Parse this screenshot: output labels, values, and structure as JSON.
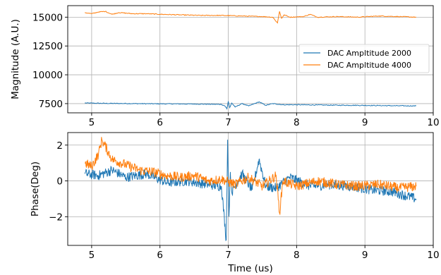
{
  "chart_data": [
    {
      "type": "line",
      "title": "",
      "xlabel": "",
      "ylabel": "Magnitude (A.U.)",
      "xlim": [
        4.65,
        10.0
      ],
      "ylim": [
        6700,
        16000
      ],
      "xticks": [
        5,
        6,
        7,
        8,
        9,
        10
      ],
      "yticks": [
        7500,
        10000,
        12500,
        15000
      ],
      "xtick_labels": [
        "5",
        "6",
        "7",
        "8",
        "9",
        "10"
      ],
      "ytick_labels": [
        "7500",
        "10000",
        "12500",
        "15000"
      ],
      "grid": true,
      "legend": "center-right",
      "series": [
        {
          "name": "DAC Ampltitude 2000",
          "color": "#1f77b4",
          "x": [
            4.9,
            5.2,
            5.5,
            5.8,
            6.1,
            6.4,
            6.7,
            6.9,
            6.95,
            6.98,
            7.0,
            7.02,
            7.05,
            7.1,
            7.2,
            7.3,
            7.45,
            7.55,
            7.65,
            7.8,
            8.0,
            8.3,
            8.6,
            8.9,
            9.2,
            9.5,
            9.75
          ],
          "y": [
            7550,
            7520,
            7510,
            7490,
            7480,
            7470,
            7450,
            7430,
            7300,
            7050,
            7700,
            7150,
            7550,
            7200,
            7500,
            7300,
            7650,
            7350,
            7500,
            7400,
            7400,
            7380,
            7360,
            7350,
            7330,
            7310,
            7300
          ]
        },
        {
          "name": "DAC Ampltitude 4000",
          "color": "#ff7f0e",
          "x": [
            4.9,
            5.0,
            5.1,
            5.2,
            5.3,
            5.4,
            5.6,
            5.8,
            6.0,
            6.3,
            6.6,
            6.9,
            7.2,
            7.5,
            7.65,
            7.72,
            7.75,
            7.78,
            7.82,
            7.9,
            8.1,
            8.2,
            8.3,
            8.6,
            8.9,
            9.2,
            9.5,
            9.75
          ],
          "y": [
            15400,
            15300,
            15450,
            15500,
            15250,
            15400,
            15300,
            15300,
            15250,
            15200,
            15150,
            15150,
            15100,
            15050,
            15000,
            14500,
            15500,
            14900,
            15200,
            15000,
            15050,
            15250,
            15000,
            15050,
            15000,
            15100,
            15050,
            15000
          ]
        }
      ]
    },
    {
      "type": "line",
      "title": "",
      "xlabel": "Time (us)",
      "ylabel": "Phase(Deg)",
      "xlim": [
        4.65,
        10.0
      ],
      "ylim": [
        -3.6,
        2.7
      ],
      "xticks": [
        5,
        6,
        7,
        8,
        9,
        10
      ],
      "yticks": [
        -2,
        0,
        2
      ],
      "xtick_labels": [
        "5",
        "6",
        "7",
        "8",
        "9",
        "10"
      ],
      "ytick_labels": [
        "−2",
        "0",
        "2"
      ],
      "grid": true,
      "series": [
        {
          "name": "DAC Ampltitude 2000",
          "color": "#1f77b4",
          "x": [
            4.9,
            5.1,
            5.3,
            5.5,
            5.8,
            6.1,
            6.4,
            6.7,
            6.9,
            6.97,
            6.99,
            7.01,
            7.03,
            7.05,
            7.2,
            7.35,
            7.45,
            7.55,
            7.7,
            7.9,
            8.2,
            8.5,
            8.8,
            9.1,
            9.4,
            9.75
          ],
          "y": [
            0.4,
            0.3,
            0.6,
            0.2,
            0.4,
            -0.1,
            0.0,
            -0.2,
            -0.3,
            -3.3,
            2.3,
            -2.0,
            0.5,
            -0.6,
            0.4,
            -0.5,
            1.2,
            -0.3,
            -0.4,
            0.2,
            -0.3,
            -0.2,
            -0.3,
            -0.5,
            -0.6,
            -1.0
          ]
        },
        {
          "name": "DAC Ampltitude 4000",
          "color": "#ff7f0e",
          "x": [
            4.9,
            5.0,
            5.1,
            5.15,
            5.3,
            5.5,
            5.7,
            5.9,
            6.1,
            6.3,
            6.5,
            6.7,
            6.9,
            7.1,
            7.3,
            7.5,
            7.7,
            7.75,
            7.8,
            8.0,
            8.3,
            8.6,
            8.9,
            9.2,
            9.5,
            9.75
          ],
          "y": [
            1.0,
            0.8,
            1.5,
            2.3,
            1.2,
            0.9,
            0.6,
            0.5,
            0.3,
            0.2,
            0.3,
            0.0,
            0.1,
            -0.2,
            0.2,
            -0.3,
            0.3,
            -1.8,
            0.0,
            -0.3,
            0.0,
            -0.2,
            -0.3,
            -0.2,
            -0.4,
            -0.3
          ]
        }
      ]
    }
  ]
}
